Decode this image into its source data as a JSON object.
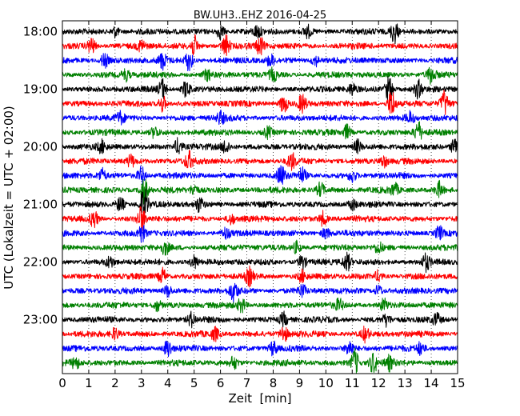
{
  "chart_data": {
    "type": "line",
    "title": "BW.UH3..EHZ 2016-04-25",
    "xlabel": "Zeit  [min]",
    "ylabel": "UTC (Lokalzeit = UTC + 02:00)",
    "xlim": [
      0,
      15
    ],
    "x_ticks": [
      "0",
      "1",
      "2",
      "3",
      "4",
      "5",
      "6",
      "7",
      "8",
      "9",
      "10",
      "11",
      "12",
      "13",
      "14",
      "15"
    ],
    "y_ticks": [
      {
        "label": "18:00",
        "trace": 0
      },
      {
        "label": "19:00",
        "trace": 4
      },
      {
        "label": "20:00",
        "trace": 8
      },
      {
        "label": "21:00",
        "trace": 12
      },
      {
        "label": "22:00",
        "trace": 16
      },
      {
        "label": "23:00",
        "trace": 20
      }
    ],
    "grid": "vertical-dotted",
    "trace_interval_min": 15,
    "trace_colors": [
      "#000000",
      "#ff0000",
      "#0000ff",
      "#008000"
    ],
    "traces": [
      {
        "start": "18:00",
        "events": [
          [
            12.6,
            2.2
          ],
          [
            6.0,
            1.3
          ],
          [
            2.0,
            1.0
          ],
          [
            9.3,
            1.1
          ],
          [
            7.4,
            1.0
          ]
        ]
      },
      {
        "start": "18:15",
        "events": [
          [
            5.0,
            1.8
          ],
          [
            6.2,
            2.0
          ],
          [
            1.1,
            1.5
          ],
          [
            7.5,
            1.6
          ],
          [
            3.0,
            1.0
          ]
        ]
      },
      {
        "start": "18:30",
        "events": [
          [
            4.8,
            1.8
          ],
          [
            3.8,
            1.5
          ],
          [
            1.6,
            1.3
          ],
          [
            7.9,
            1.0
          ],
          [
            9.6,
            1.0
          ]
        ]
      },
      {
        "start": "18:45",
        "events": [
          [
            14.0,
            1.6
          ],
          [
            8.0,
            1.1
          ],
          [
            2.4,
            1.0
          ],
          [
            5.5,
            1.0
          ]
        ]
      },
      {
        "start": "19:00",
        "events": [
          [
            12.4,
            2.6
          ],
          [
            3.8,
            1.9
          ],
          [
            4.7,
            1.6
          ],
          [
            13.5,
            1.5
          ],
          [
            11.0,
            1.0
          ]
        ]
      },
      {
        "start": "19:15",
        "events": [
          [
            12.5,
            2.6
          ],
          [
            14.5,
            2.3
          ],
          [
            8.4,
            1.7
          ],
          [
            9.1,
            1.6
          ],
          [
            3.8,
            1.4
          ]
        ]
      },
      {
        "start": "19:30",
        "events": [
          [
            6.0,
            1.1
          ],
          [
            13.2,
            1.0
          ],
          [
            2.2,
            1.0
          ]
        ]
      },
      {
        "start": "19:45",
        "events": [
          [
            13.5,
            1.9
          ],
          [
            10.8,
            1.3
          ],
          [
            3.5,
            1.0
          ],
          [
            7.8,
            1.0
          ]
        ]
      },
      {
        "start": "20:00",
        "events": [
          [
            14.9,
            1.8
          ],
          [
            4.4,
            1.5
          ],
          [
            6.2,
            1.3
          ],
          [
            11.2,
            1.2
          ],
          [
            1.5,
            1.0
          ]
        ]
      },
      {
        "start": "20:15",
        "events": [
          [
            4.8,
            1.5
          ],
          [
            8.7,
            1.4
          ],
          [
            2.6,
            1.1
          ],
          [
            12.2,
            1.0
          ]
        ]
      },
      {
        "start": "20:30",
        "events": [
          [
            8.3,
            1.8
          ],
          [
            3.0,
            1.6
          ],
          [
            1.5,
            1.2
          ],
          [
            9.1,
            1.3
          ],
          [
            11.0,
            1.1
          ]
        ]
      },
      {
        "start": "20:45",
        "events": [
          [
            3.1,
            2.4
          ],
          [
            9.8,
            1.3
          ],
          [
            14.3,
            1.4
          ],
          [
            5.0,
            1.0
          ],
          [
            12.6,
            1.1
          ]
        ]
      },
      {
        "start": "21:00",
        "events": [
          [
            3.1,
            3.2
          ],
          [
            2.2,
            1.4
          ],
          [
            5.2,
            1.3
          ],
          [
            11.0,
            1.0
          ]
        ]
      },
      {
        "start": "21:15",
        "events": [
          [
            3.0,
            2.3
          ],
          [
            1.2,
            1.6
          ],
          [
            9.9,
            1.3
          ],
          [
            6.4,
            1.0
          ]
        ]
      },
      {
        "start": "21:30",
        "events": [
          [
            3.0,
            1.6
          ],
          [
            14.3,
            1.3
          ],
          [
            10.0,
            1.0
          ],
          [
            6.2,
            1.0
          ]
        ]
      },
      {
        "start": "21:45",
        "events": [
          [
            3.9,
            1.1
          ],
          [
            8.9,
            1.1
          ],
          [
            12.0,
            1.0
          ]
        ]
      },
      {
        "start": "22:00",
        "events": [
          [
            10.8,
            1.6
          ],
          [
            13.8,
            1.5
          ],
          [
            5.0,
            1.2
          ],
          [
            9.1,
            1.3
          ],
          [
            1.8,
            1.0
          ]
        ]
      },
      {
        "start": "22:15",
        "events": [
          [
            7.1,
            1.5
          ],
          [
            3.8,
            1.4
          ],
          [
            9.1,
            1.0
          ],
          [
            12.0,
            1.0
          ]
        ]
      },
      {
        "start": "22:30",
        "events": [
          [
            6.5,
            1.9
          ],
          [
            4.0,
            1.1
          ],
          [
            9.1,
            1.1
          ],
          [
            12.0,
            1.0
          ]
        ]
      },
      {
        "start": "22:45",
        "events": [
          [
            6.8,
            1.3
          ],
          [
            12.2,
            1.1
          ],
          [
            3.6,
            1.0
          ],
          [
            10.5,
            1.0
          ]
        ]
      },
      {
        "start": "23:00",
        "events": [
          [
            4.9,
            1.3
          ],
          [
            8.4,
            1.2
          ],
          [
            12.3,
            1.0
          ],
          [
            14.2,
            1.0
          ]
        ]
      },
      {
        "start": "23:15",
        "events": [
          [
            8.4,
            1.5
          ],
          [
            11.5,
            1.3
          ],
          [
            2.0,
            1.0
          ],
          [
            5.8,
            1.1
          ]
        ]
      },
      {
        "start": "23:30",
        "events": [
          [
            4.0,
            1.6
          ],
          [
            8.0,
            1.3
          ],
          [
            10.9,
            1.4
          ],
          [
            13.6,
            1.1
          ]
        ]
      },
      {
        "start": "23:45",
        "events": [
          [
            11.1,
            2.4
          ],
          [
            11.8,
            1.9
          ],
          [
            0.5,
            1.0
          ],
          [
            6.5,
            1.1
          ],
          [
            12.4,
            1.2
          ]
        ]
      }
    ]
  }
}
